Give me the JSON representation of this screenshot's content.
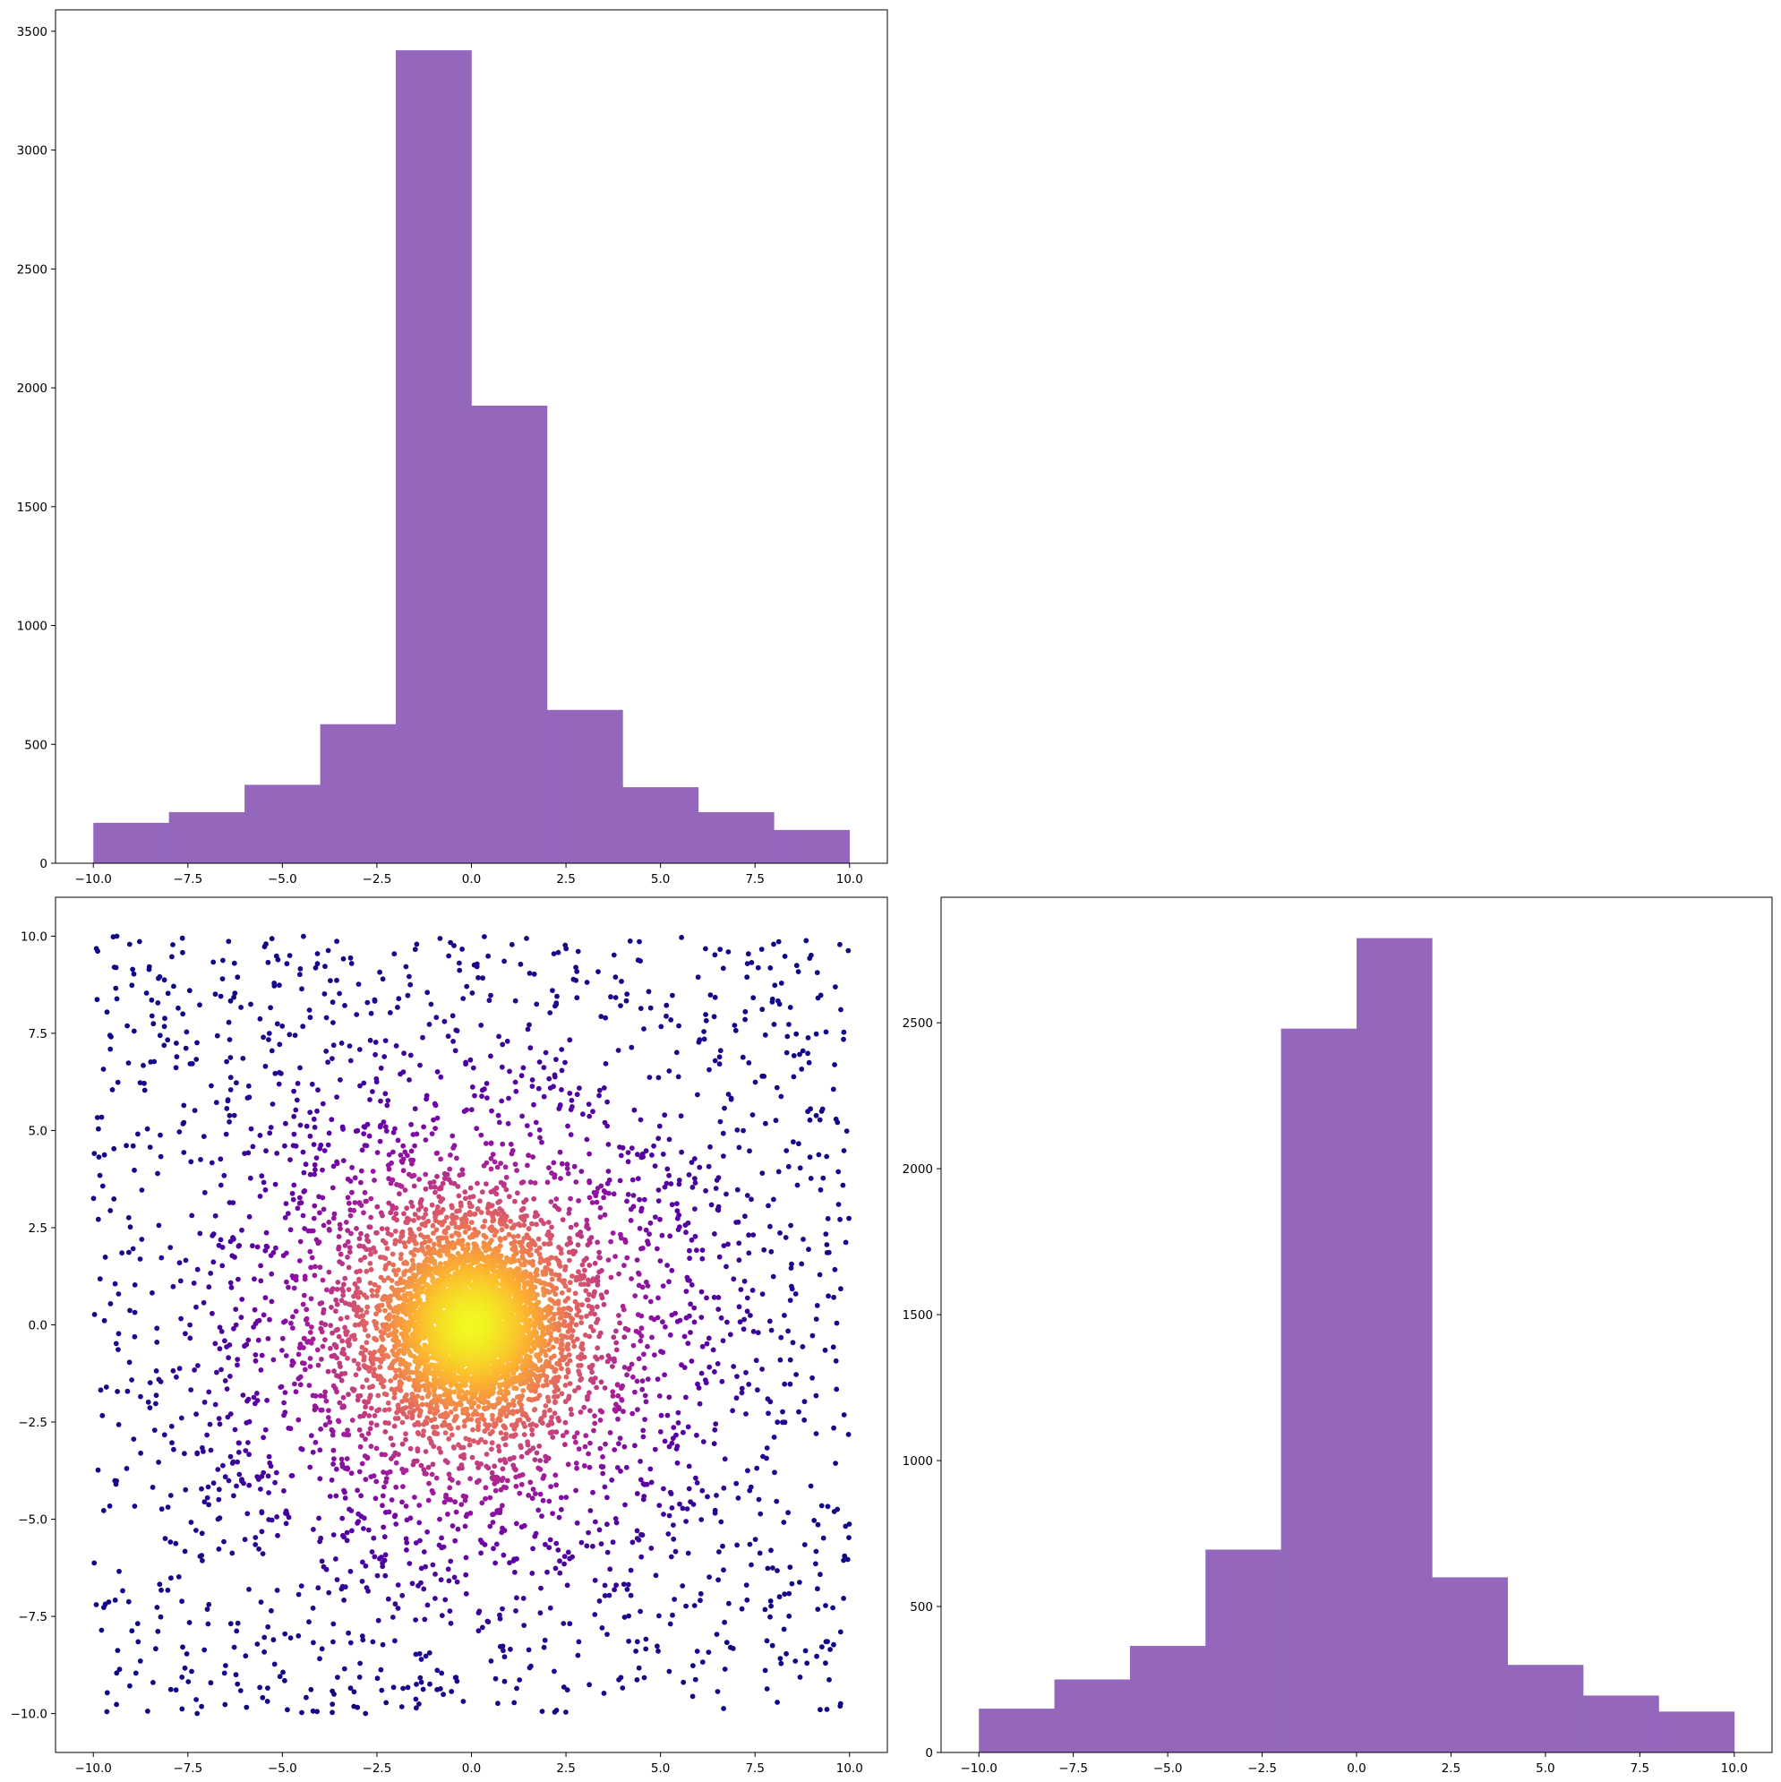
{
  "chart_data": [
    {
      "type": "bar",
      "panel": "top-left",
      "x_tick_labels": [
        "−10.0",
        "−7.5",
        "−5.0",
        "−2.5",
        "0.0",
        "2.5",
        "5.0",
        "7.5",
        "10.0"
      ],
      "x_ticks": [
        -10,
        -7.5,
        -5,
        -2.5,
        0,
        2.5,
        5,
        7.5,
        10
      ],
      "y_tick_labels": [
        "0",
        "500",
        "1000",
        "1500",
        "2000",
        "2500",
        "3000",
        "3500"
      ],
      "y_ticks": [
        0,
        500,
        1000,
        1500,
        2000,
        2500,
        3000,
        3500
      ],
      "bin_edges": [
        -10,
        -8,
        -6,
        -4,
        -2,
        0,
        2,
        4,
        6,
        8,
        10
      ],
      "values": [
        170,
        215,
        330,
        585,
        3420,
        1925,
        645,
        320,
        215,
        140
      ],
      "xlim": [
        -11,
        11
      ],
      "ylim": [
        0,
        3590
      ],
      "color": "#9467bd",
      "grid": false
    },
    {
      "type": "scatter",
      "panel": "bottom-left",
      "x_tick_labels": [
        "−10.0",
        "−7.5",
        "−5.0",
        "−2.5",
        "0.0",
        "2.5",
        "5.0",
        "7.5",
        "10.0"
      ],
      "x_ticks": [
        -10,
        -7.5,
        -5,
        -2.5,
        0,
        2.5,
        5,
        7.5,
        10
      ],
      "y_tick_labels": [
        "−10.0",
        "−7.5",
        "−5.0",
        "−2.5",
        "0.0",
        "2.5",
        "5.0",
        "7.5",
        "10.0"
      ],
      "y_ticks": [
        -10,
        -7.5,
        -5,
        -2.5,
        0,
        2.5,
        5,
        7.5,
        10
      ],
      "xlim": [
        -11,
        11
      ],
      "ylim": [
        -11,
        11
      ],
      "n_points": 7000,
      "center": [
        0,
        0
      ],
      "colormap": "plasma",
      "colormap_stops": [
        "#0d0887",
        "#5c01a6",
        "#9c179e",
        "#cc4778",
        "#ed7953",
        "#fdb42f",
        "#f0f921"
      ],
      "grid": false
    },
    {
      "type": "bar",
      "panel": "bottom-right",
      "x_tick_labels": [
        "−10.0",
        "−7.5",
        "−5.0",
        "−2.5",
        "0.0",
        "2.5",
        "5.0",
        "7.5",
        "10.0"
      ],
      "x_ticks": [
        -10,
        -7.5,
        -5,
        -2.5,
        0,
        2.5,
        5,
        7.5,
        10
      ],
      "y_tick_labels": [
        "0",
        "500",
        "1000",
        "1500",
        "2000",
        "2500"
      ],
      "y_ticks": [
        0,
        500,
        1000,
        1500,
        2000,
        2500
      ],
      "bin_edges": [
        -10,
        -8,
        -6,
        -4,
        -2,
        0,
        2,
        4,
        6,
        8,
        10
      ],
      "values": [
        150,
        250,
        365,
        695,
        2480,
        2790,
        600,
        300,
        195,
        140
      ],
      "xlim": [
        -11,
        11
      ],
      "ylim": [
        0,
        2930
      ],
      "color": "#9467bd",
      "grid": false
    }
  ]
}
